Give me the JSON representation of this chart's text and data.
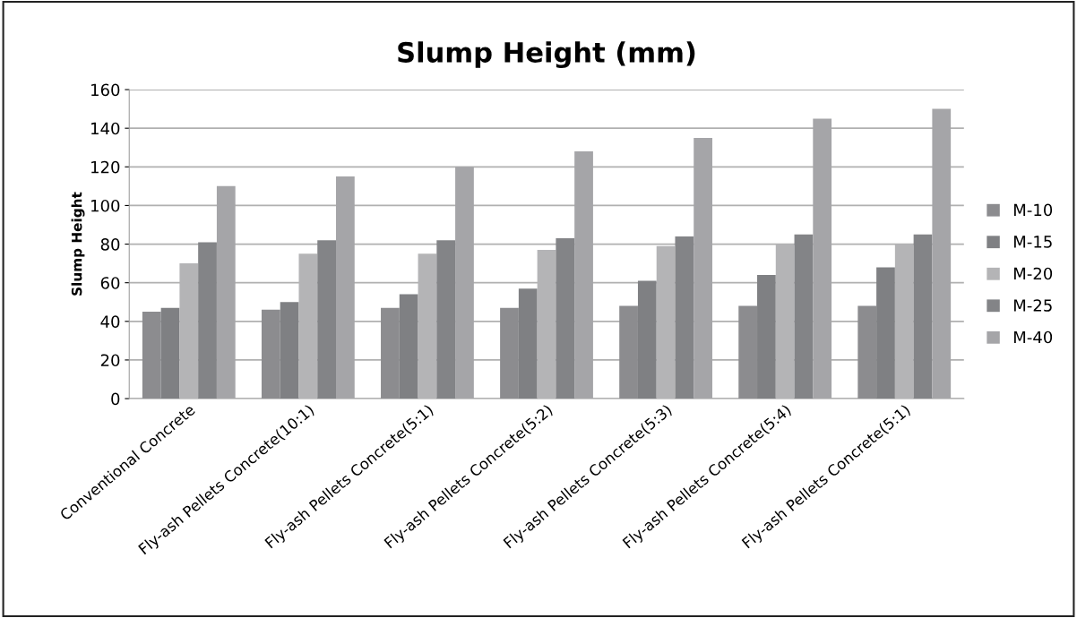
{
  "chart_data": {
    "type": "bar",
    "title": "Slump Height (mm)",
    "ylabel": "Slump Height",
    "categories": [
      "Conventional Concrete",
      "Fly-ash Pellets Concrete(10:1)",
      "Fly-ash Pellets Concrete(5:1)",
      "Fly-ash Pellets Concrete(5:2)",
      "Fly-ash Pellets Concrete(5:3)",
      "Fly-ash Pellets Concrete(5:4)",
      "Fly-ash Pellets Concrete(5:1)"
    ],
    "series": [
      {
        "name": "M-10",
        "color": "#8c8c8f",
        "values": [
          45,
          46,
          47,
          47,
          48,
          48,
          48
        ]
      },
      {
        "name": "M-15",
        "color": "#7f8083",
        "values": [
          47,
          50,
          54,
          57,
          61,
          64,
          68
        ]
      },
      {
        "name": "M-20",
        "color": "#b4b4b6",
        "values": [
          70,
          75,
          75,
          77,
          79,
          80,
          80
        ]
      },
      {
        "name": "M-25",
        "color": "#838487",
        "values": [
          81,
          82,
          82,
          83,
          84,
          85,
          85
        ]
      },
      {
        "name": "M-40",
        "color": "#a5a5a8",
        "values": [
          110,
          115,
          120,
          128,
          135,
          145,
          150
        ]
      }
    ],
    "ylim": [
      0,
      160
    ],
    "yticks": [
      0,
      20,
      40,
      60,
      80,
      100,
      120,
      140,
      160
    ],
    "grid": "y",
    "legend": "right"
  }
}
